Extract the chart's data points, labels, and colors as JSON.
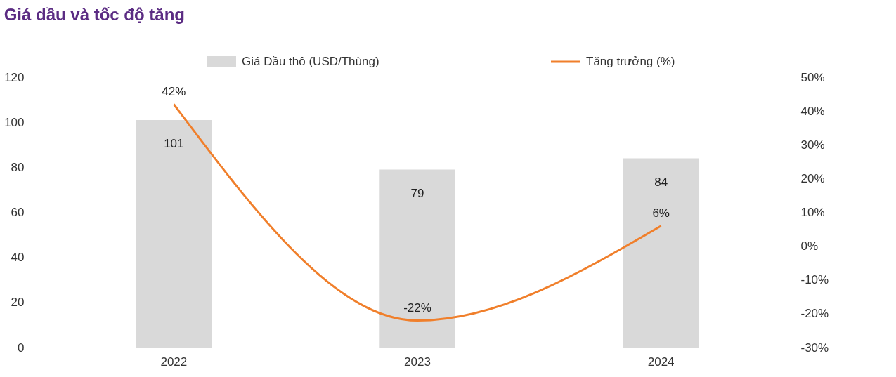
{
  "chart_data": {
    "type": "bar",
    "title": "Giá dầu và tốc độ tăng",
    "categories": [
      "2022",
      "2023",
      "2024"
    ],
    "series": [
      {
        "name": "Giá Dầu thô (USD/Thùng)",
        "color": "#d9d9d9",
        "values": [
          101,
          79,
          84
        ]
      },
      {
        "name": "Tăng trưởng (%)",
        "type": "line",
        "axis": "y2",
        "color": "#f07f2b",
        "values": [
          42,
          -22,
          6
        ],
        "value_labels": [
          "42%",
          "-22%",
          "6%"
        ]
      }
    ],
    "ylim": [
      0,
      120
    ],
    "yticks": [
      0,
      20,
      40,
      60,
      80,
      100,
      120
    ],
    "y2lim": [
      -30,
      50
    ],
    "y2ticks": [
      {
        "value": -30,
        "label": "-30%"
      },
      {
        "value": -20,
        "label": "-20%"
      },
      {
        "value": -10,
        "label": "-10%"
      },
      {
        "value": 0,
        "label": "0%"
      },
      {
        "value": 10,
        "label": "10%"
      },
      {
        "value": 20,
        "label": "20%"
      },
      {
        "value": 30,
        "label": "30%"
      },
      {
        "value": 40,
        "label": "40%"
      },
      {
        "value": 50,
        "label": "50%"
      }
    ],
    "data_labels": true,
    "legend": "top"
  }
}
